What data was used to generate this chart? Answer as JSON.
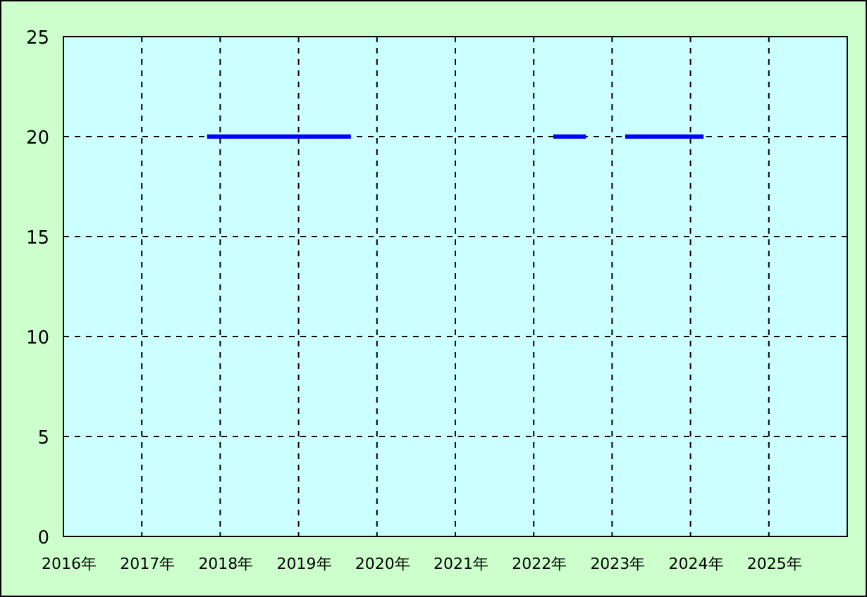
{
  "chart_data": {
    "type": "line",
    "series": [
      {
        "color": "#0000ff",
        "x": [
          "2017-11",
          "2019-09"
        ],
        "values": [
          20,
          20
        ]
      },
      {
        "color": "#0000ff",
        "x": [
          "2022-04",
          "2022-09"
        ],
        "values": [
          20,
          20
        ]
      },
      {
        "color": "#0000ff",
        "x": [
          "2023-03",
          "2024-03"
        ],
        "values": [
          20,
          20
        ]
      }
    ],
    "xlim": [
      "2016",
      "2026"
    ],
    "xticks": [
      {
        "value": "2016",
        "label": "2016年"
      },
      {
        "value": "2017",
        "label": "2017年"
      },
      {
        "value": "2018",
        "label": "2018年"
      },
      {
        "value": "2019",
        "label": "2019年"
      },
      {
        "value": "2020",
        "label": "2020年"
      },
      {
        "value": "2021",
        "label": "2021年"
      },
      {
        "value": "2022",
        "label": "2022年"
      },
      {
        "value": "2023",
        "label": "2023年"
      },
      {
        "value": "2024",
        "label": "2024年"
      },
      {
        "value": "2025",
        "label": "2025年"
      }
    ],
    "ylim": [
      0,
      25
    ],
    "yticks": [
      0,
      5,
      10,
      15,
      20,
      25
    ],
    "grid": true,
    "marker": "none",
    "line_style": "solid"
  }
}
